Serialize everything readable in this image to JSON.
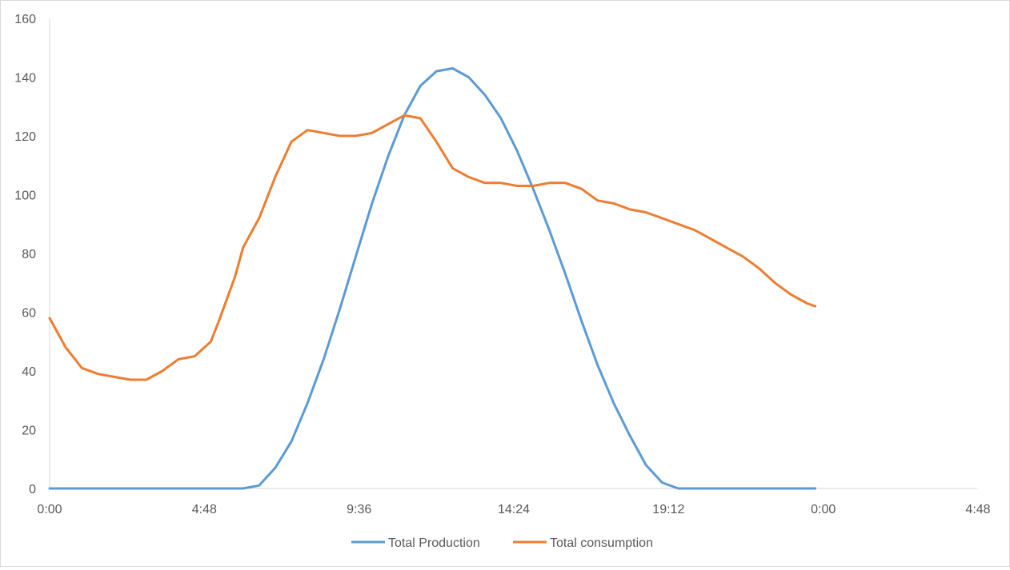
{
  "chart_data": {
    "type": "line",
    "title": "",
    "xlabel": "",
    "ylabel": "",
    "ylim": [
      0,
      160
    ],
    "yticks": [
      "0",
      "20",
      "40",
      "60",
      "80",
      "100",
      "120",
      "140",
      "160"
    ],
    "xlim_hours": [
      0,
      28.8
    ],
    "xticks": [
      "0:00",
      "4:48",
      "9:36",
      "14:24",
      "19:12",
      "0:00",
      "4:48"
    ],
    "grid": false,
    "legend_position": "bottom",
    "colors": {
      "Total Production": "#5b9bd5",
      "Total consumption": "#ed7d31"
    },
    "series": [
      {
        "name": "Total Production",
        "x_hours": [
          0,
          1,
          2,
          3,
          4,
          5,
          6,
          6.5,
          7,
          7.5,
          8,
          8.5,
          9,
          9.5,
          10,
          10.5,
          11,
          11.5,
          12,
          12.5,
          13,
          13.5,
          14,
          14.5,
          15,
          15.5,
          16,
          16.5,
          17,
          17.5,
          18,
          18.5,
          19,
          19.5,
          20,
          20.5,
          21,
          21.5,
          22,
          22.5,
          23,
          23.5,
          23.75
        ],
        "values": [
          0,
          0,
          0,
          0,
          0,
          0,
          0,
          1,
          7,
          16,
          29,
          44,
          61,
          79,
          97,
          113,
          127,
          137,
          142,
          143,
          140,
          134,
          126,
          115,
          102,
          88,
          73,
          57,
          42,
          29,
          18,
          8,
          2,
          0,
          0,
          0,
          0,
          0,
          0,
          0,
          0,
          0,
          0
        ]
      },
      {
        "name": "Total consumption",
        "x_hours": [
          0,
          0.5,
          1,
          1.5,
          2,
          2.5,
          3,
          3.5,
          3.75,
          4,
          4.5,
          5,
          5.25,
          5.75,
          6,
          6.5,
          7,
          7.5,
          8,
          8.5,
          9,
          9.5,
          10,
          10.5,
          11,
          11.5,
          12,
          12.5,
          13,
          13.5,
          14,
          14.5,
          15,
          15.5,
          16,
          16.5,
          17,
          17.5,
          18,
          18.5,
          19,
          19.5,
          20,
          20.5,
          21,
          21.5,
          22,
          22.5,
          23,
          23.5,
          23.75
        ],
        "values": [
          58,
          48,
          41,
          39,
          38,
          37,
          37,
          40,
          42,
          44,
          45,
          50,
          57,
          72,
          82,
          92,
          106,
          118,
          122,
          121,
          120,
          120,
          121,
          124,
          127,
          126,
          118,
          109,
          106,
          104,
          104,
          103,
          103,
          104,
          104,
          102,
          98,
          97,
          95,
          94,
          92,
          90,
          88,
          85,
          82,
          79,
          75,
          70,
          66,
          63,
          62
        ]
      }
    ]
  }
}
